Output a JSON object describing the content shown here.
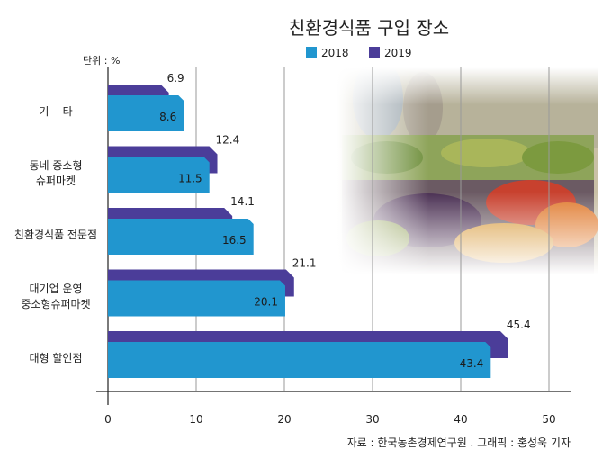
{
  "chart_data": {
    "type": "bar",
    "orientation": "horizontal",
    "title": "친환경식품 구입 장소",
    "unit_label": "단위 : %",
    "categories": [
      [
        "기    타"
      ],
      [
        "동네 중소형",
        "슈퍼마켓"
      ],
      [
        "친환경식품 전문점"
      ],
      [
        "대기업 운영",
        "중소형슈퍼마켓"
      ],
      [
        "대형 할인점"
      ]
    ],
    "series": [
      {
        "name": "2018",
        "color": "#2196cf",
        "values": [
          8.6,
          11.5,
          16.5,
          20.1,
          43.4
        ],
        "labels": [
          "8.6",
          "11.5",
          "16.5",
          "20.1",
          "43.4"
        ]
      },
      {
        "name": "2019",
        "color": "#4b3d99",
        "values": [
          6.9,
          12.4,
          14.1,
          21.1,
          45.4
        ],
        "labels": [
          "6.9",
          "12.4",
          "14.1",
          "21.1",
          "45.4"
        ]
      }
    ],
    "xlim": [
      0,
      50
    ],
    "xticks": [
      0,
      10,
      20,
      30,
      40,
      50
    ],
    "grid": true,
    "legend_position": "top"
  },
  "source": "자료 : 한국농촌경제연구원 . 그래픽 : 홍성욱 기자",
  "background_image": "market-produce-photo"
}
